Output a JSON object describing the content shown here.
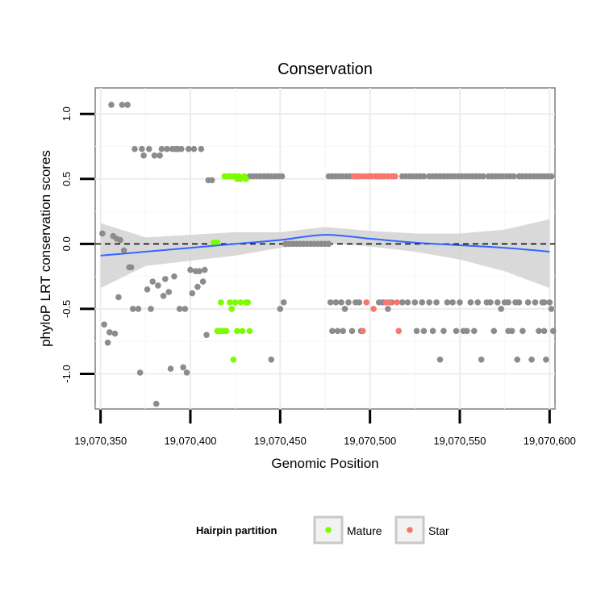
{
  "chart_data": {
    "type": "scatter",
    "title": "Conservation",
    "xlabel": "Genomic Position",
    "ylabel": "phyloP LRT conservation scores",
    "xlim": [
      19070347,
      19070603
    ],
    "ylim": [
      -1.27,
      1.2
    ],
    "x_ticks": [
      19070350,
      19070400,
      19070450,
      19070500,
      19070550,
      19070600
    ],
    "x_tick_labels": [
      "19,070,350",
      "19,070,400",
      "19,070,450",
      "19,070,500",
      "19,070,550",
      "19,070,600"
    ],
    "y_ticks": [
      -1.0,
      -0.5,
      0.0,
      0.5,
      1.0
    ],
    "y_tick_labels": [
      "-1.0",
      "-0.5",
      "0.0",
      "0.5",
      "1.0"
    ],
    "reference_line": {
      "y": 0,
      "style": "dashed",
      "color": "#000000"
    },
    "legend": {
      "title": "Hairpin partition",
      "position": "bottom",
      "entries": [
        {
          "label": "Mature",
          "color": "#7cfc00"
        },
        {
          "label": "Star",
          "color": "#f8766d"
        }
      ]
    },
    "colors": {
      "Other": "#8c8c8c",
      "Mature": "#7cfc00",
      "Star": "#f8766d",
      "smooth": "#3366ff",
      "band": "#d2d2d2"
    },
    "smooth": {
      "x": [
        19070350,
        19070375,
        19070400,
        19070425,
        19070450,
        19070475,
        19070500,
        19070525,
        19070550,
        19070575,
        19070600
      ],
      "y": [
        -0.09,
        -0.06,
        -0.03,
        0.0,
        0.03,
        0.07,
        0.04,
        0.01,
        -0.01,
        -0.03,
        -0.06
      ],
      "lower": [
        -0.34,
        -0.17,
        -0.13,
        -0.09,
        -0.03,
        0.01,
        -0.02,
        -0.06,
        -0.12,
        -0.21,
        -0.34
      ],
      "upper": [
        0.16,
        0.05,
        0.07,
        0.09,
        0.09,
        0.13,
        0.1,
        0.08,
        0.08,
        0.11,
        0.19
      ]
    },
    "series": [
      {
        "name": "Other",
        "points": [
          [
            19070351,
            0.08
          ],
          [
            19070352,
            -0.62
          ],
          [
            19070354,
            -0.76
          ],
          [
            19070355,
            -0.68
          ],
          [
            19070356,
            1.07
          ],
          [
            19070357,
            0.06
          ],
          [
            19070358,
            -0.69
          ],
          [
            19070359,
            0.04
          ],
          [
            19070360,
            -0.41
          ],
          [
            19070361,
            0.03
          ],
          [
            19070362,
            1.07
          ],
          [
            19070363,
            -0.05
          ],
          [
            19070365,
            1.07
          ],
          [
            19070366,
            -0.18
          ],
          [
            19070367,
            -0.18
          ],
          [
            19070368,
            -0.5
          ],
          [
            19070369,
            0.73
          ],
          [
            19070371,
            -0.5
          ],
          [
            19070372,
            -0.99
          ],
          [
            19070373,
            0.73
          ],
          [
            19070374,
            0.68
          ],
          [
            19070376,
            -0.35
          ],
          [
            19070377,
            0.73
          ],
          [
            19070378,
            -0.5
          ],
          [
            19070379,
            -0.29
          ],
          [
            19070380,
            0.68
          ],
          [
            19070381,
            -1.23
          ],
          [
            19070382,
            -0.32
          ],
          [
            19070383,
            0.68
          ],
          [
            19070384,
            0.73
          ],
          [
            19070385,
            -0.4
          ],
          [
            19070386,
            -0.27
          ],
          [
            19070387,
            0.73
          ],
          [
            19070388,
            -0.37
          ],
          [
            19070389,
            -0.96
          ],
          [
            19070390,
            0.73
          ],
          [
            19070391,
            -0.25
          ],
          [
            19070392,
            0.73
          ],
          [
            19070393,
            0.73
          ],
          [
            19070394,
            -0.5
          ],
          [
            19070395,
            0.73
          ],
          [
            19070396,
            -0.95
          ],
          [
            19070397,
            -0.5
          ],
          [
            19070398,
            -0.99
          ],
          [
            19070399,
            0.73
          ],
          [
            19070400,
            -0.2
          ],
          [
            19070401,
            -0.38
          ],
          [
            19070402,
            0.73
          ],
          [
            19070403,
            -0.21
          ],
          [
            19070404,
            -0.33
          ],
          [
            19070405,
            -0.21
          ],
          [
            19070406,
            0.73
          ],
          [
            19070407,
            -0.29
          ],
          [
            19070408,
            -0.2
          ],
          [
            19070409,
            -0.7
          ],
          [
            19070410,
            0.49
          ],
          [
            19070412,
            0.49
          ],
          [
            19070433,
            0.52
          ],
          [
            19070435,
            0.52
          ],
          [
            19070437,
            0.52
          ],
          [
            19070439,
            0.52
          ],
          [
            19070441,
            0.52
          ],
          [
            19070443,
            0.52
          ],
          [
            19070445,
            0.52
          ],
          [
            19070447,
            0.52
          ],
          [
            19070449,
            0.52
          ],
          [
            19070445,
            -0.89
          ],
          [
            19070450,
            -0.5
          ],
          [
            19070451,
            0.52
          ],
          [
            19070452,
            -0.45
          ],
          [
            19070453,
            0.0
          ],
          [
            19070455,
            0.0
          ],
          [
            19070457,
            0.0
          ],
          [
            19070459,
            0.0
          ],
          [
            19070461,
            0.0
          ],
          [
            19070463,
            0.0
          ],
          [
            19070465,
            0.0
          ],
          [
            19070467,
            0.0
          ],
          [
            19070469,
            0.0
          ],
          [
            19070471,
            0.0
          ],
          [
            19070473,
            0.0
          ],
          [
            19070475,
            0.0
          ],
          [
            19070477,
            0.0
          ],
          [
            19070477,
            0.52
          ],
          [
            19070479,
            0.52
          ],
          [
            19070481,
            0.52
          ],
          [
            19070483,
            0.52
          ],
          [
            19070485,
            0.52
          ],
          [
            19070487,
            0.52
          ],
          [
            19070489,
            0.52
          ],
          [
            19070478,
            -0.45
          ],
          [
            19070479,
            -0.67
          ],
          [
            19070481,
            -0.45
          ],
          [
            19070482,
            -0.67
          ],
          [
            19070484,
            -0.45
          ],
          [
            19070485,
            -0.67
          ],
          [
            19070486,
            -0.5
          ],
          [
            19070488,
            -0.45
          ],
          [
            19070490,
            -0.67
          ],
          [
            19070492,
            -0.45
          ],
          [
            19070494,
            -0.45
          ],
          [
            19070495,
            -0.67
          ],
          [
            19070505,
            -0.45
          ],
          [
            19070507,
            -0.45
          ],
          [
            19070510,
            -0.5
          ],
          [
            19070512,
            -0.45
          ],
          [
            19070518,
            0.52
          ],
          [
            19070520,
            0.52
          ],
          [
            19070522,
            0.52
          ],
          [
            19070524,
            0.52
          ],
          [
            19070526,
            0.52
          ],
          [
            19070528,
            0.52
          ],
          [
            19070530,
            0.52
          ],
          [
            19070533,
            0.52
          ],
          [
            19070535,
            0.52
          ],
          [
            19070537,
            0.52
          ],
          [
            19070539,
            0.52
          ],
          [
            19070541,
            0.52
          ],
          [
            19070543,
            0.52
          ],
          [
            19070545,
            0.52
          ],
          [
            19070547,
            0.52
          ],
          [
            19070549,
            0.52
          ],
          [
            19070551,
            0.52
          ],
          [
            19070553,
            0.52
          ],
          [
            19070555,
            0.52
          ],
          [
            19070557,
            0.52
          ],
          [
            19070559,
            0.52
          ],
          [
            19070561,
            0.52
          ],
          [
            19070563,
            0.52
          ],
          [
            19070566,
            0.52
          ],
          [
            19070568,
            0.52
          ],
          [
            19070570,
            0.52
          ],
          [
            19070572,
            0.52
          ],
          [
            19070574,
            0.52
          ],
          [
            19070576,
            0.52
          ],
          [
            19070578,
            0.52
          ],
          [
            19070580,
            0.52
          ],
          [
            19070583,
            0.52
          ],
          [
            19070585,
            0.52
          ],
          [
            19070587,
            0.52
          ],
          [
            19070589,
            0.52
          ],
          [
            19070591,
            0.52
          ],
          [
            19070593,
            0.52
          ],
          [
            19070595,
            0.52
          ],
          [
            19070597,
            0.52
          ],
          [
            19070599,
            0.52
          ],
          [
            19070601,
            0.52
          ],
          [
            19070518,
            -0.45
          ],
          [
            19070521,
            -0.45
          ],
          [
            19070525,
            -0.45
          ],
          [
            19070526,
            -0.67
          ],
          [
            19070529,
            -0.45
          ],
          [
            19070530,
            -0.67
          ],
          [
            19070533,
            -0.45
          ],
          [
            19070535,
            -0.67
          ],
          [
            19070537,
            -0.45
          ],
          [
            19070539,
            -0.89
          ],
          [
            19070541,
            -0.67
          ],
          [
            19070543,
            -0.45
          ],
          [
            19070546,
            -0.45
          ],
          [
            19070548,
            -0.67
          ],
          [
            19070550,
            -0.45
          ],
          [
            19070552,
            -0.67
          ],
          [
            19070554,
            -0.67
          ],
          [
            19070556,
            -0.45
          ],
          [
            19070558,
            -0.67
          ],
          [
            19070560,
            -0.45
          ],
          [
            19070562,
            -0.89
          ],
          [
            19070565,
            -0.45
          ],
          [
            19070567,
            -0.45
          ],
          [
            19070569,
            -0.67
          ],
          [
            19070571,
            -0.45
          ],
          [
            19070573,
            -0.5
          ],
          [
            19070575,
            -0.45
          ],
          [
            19070577,
            -0.45
          ],
          [
            19070579,
            -0.67
          ],
          [
            19070581,
            -0.45
          ],
          [
            19070583,
            -0.45
          ],
          [
            19070585,
            -0.67
          ],
          [
            19070588,
            -0.45
          ],
          [
            19070590,
            -0.89
          ],
          [
            19070592,
            -0.45
          ],
          [
            19070594,
            -0.67
          ],
          [
            19070596,
            -0.45
          ],
          [
            19070598,
            -0.89
          ],
          [
            19070600,
            -0.45
          ],
          [
            19070601,
            -0.5
          ],
          [
            19070602,
            -0.67
          ],
          [
            19070597,
            -0.67
          ],
          [
            19070577,
            -0.67
          ],
          [
            19070582,
            -0.89
          ],
          [
            19070597,
            -0.45
          ]
        ]
      },
      {
        "name": "Mature",
        "points": [
          [
            19070413,
            0.01
          ],
          [
            19070414,
            0.01
          ],
          [
            19070415,
            0.01
          ],
          [
            19070415,
            -0.67
          ],
          [
            19070416,
            -0.67
          ],
          [
            19070417,
            -0.67
          ],
          [
            19070417,
            -0.45
          ],
          [
            19070418,
            -0.67
          ],
          [
            19070419,
            0.52
          ],
          [
            19070419,
            -0.67
          ],
          [
            19070420,
            -0.67
          ],
          [
            19070421,
            0.52
          ],
          [
            19070422,
            0.52
          ],
          [
            19070422,
            -0.45
          ],
          [
            19070423,
            -0.5
          ],
          [
            19070424,
            0.52
          ],
          [
            19070424,
            -0.89
          ],
          [
            19070425,
            0.52
          ],
          [
            19070425,
            -0.45
          ],
          [
            19070426,
            0.5
          ],
          [
            19070426,
            -0.67
          ],
          [
            19070427,
            0.52
          ],
          [
            19070428,
            0.5
          ],
          [
            19070428,
            -0.45
          ],
          [
            19070429,
            -0.67
          ],
          [
            19070430,
            0.52
          ],
          [
            19070431,
            0.5
          ],
          [
            19070431,
            -0.45
          ],
          [
            19070432,
            -0.45
          ],
          [
            19070433,
            -0.67
          ]
        ]
      },
      {
        "name": "Star",
        "points": [
          [
            19070491,
            0.52
          ],
          [
            19070492,
            0.52
          ],
          [
            19070493,
            0.52
          ],
          [
            19070494,
            0.52
          ],
          [
            19070495,
            0.52
          ],
          [
            19070496,
            -0.67
          ],
          [
            19070497,
            0.52
          ],
          [
            19070498,
            -0.45
          ],
          [
            19070499,
            0.52
          ],
          [
            19070500,
            0.52
          ],
          [
            19070501,
            0.52
          ],
          [
            19070502,
            -0.5
          ],
          [
            19070503,
            0.52
          ],
          [
            19070504,
            0.52
          ],
          [
            19070505,
            0.52
          ],
          [
            19070506,
            0.52
          ],
          [
            19070507,
            0.52
          ],
          [
            19070508,
            0.52
          ],
          [
            19070509,
            -0.45
          ],
          [
            19070510,
            0.52
          ],
          [
            19070511,
            -0.45
          ],
          [
            19070512,
            0.52
          ],
          [
            19070513,
            0.52
          ],
          [
            19070514,
            0.52
          ],
          [
            19070515,
            -0.45
          ],
          [
            19070516,
            -0.67
          ]
        ]
      }
    ]
  }
}
